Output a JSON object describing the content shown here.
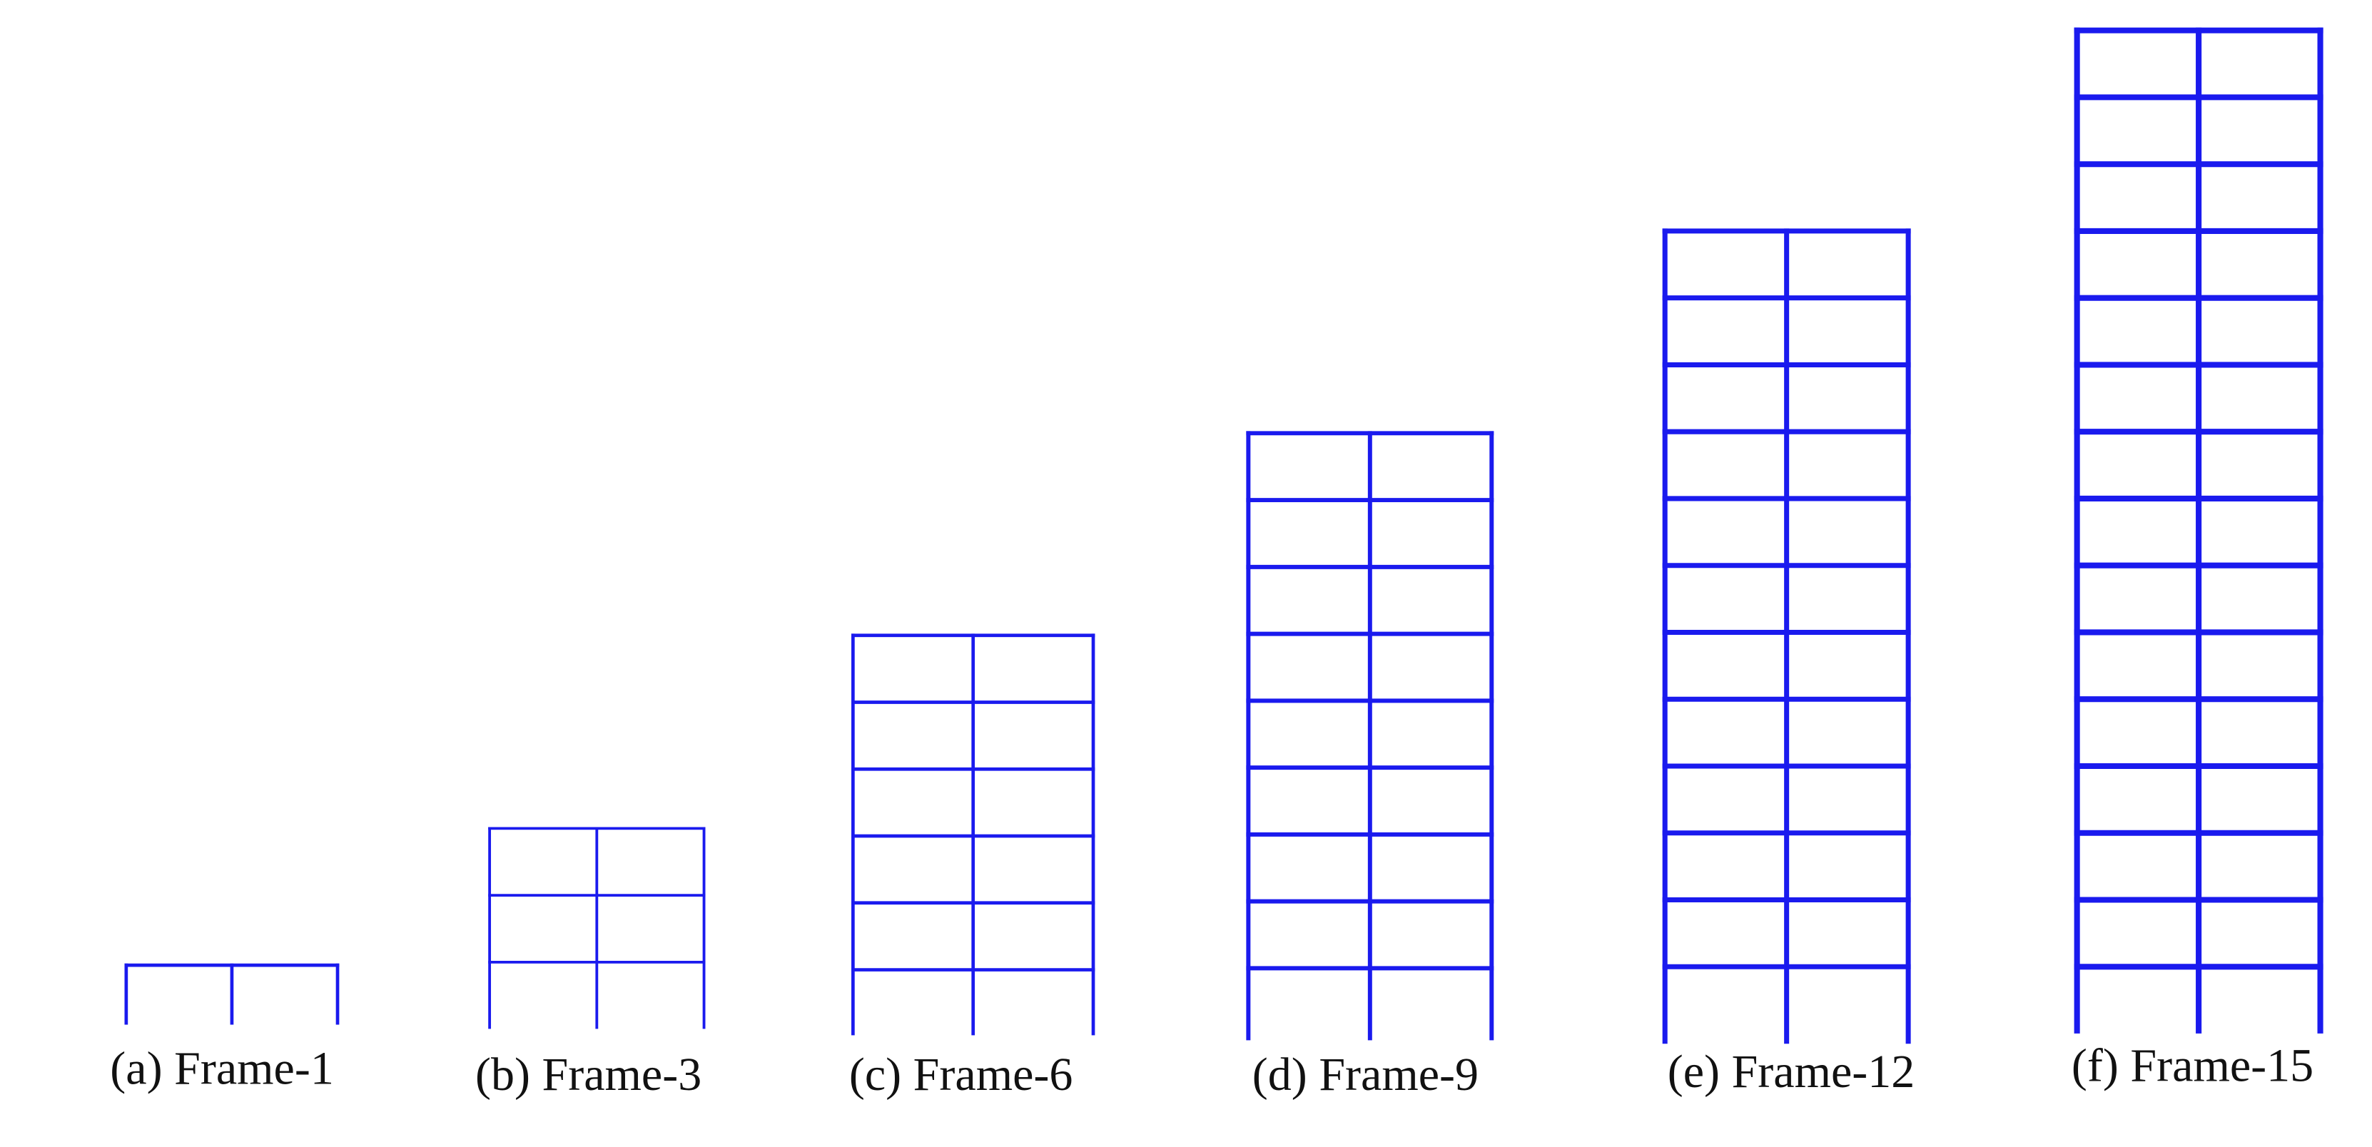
{
  "frames": [
    {
      "label": "(a) Frame-1"
    },
    {
      "label": "(b) Frame-3"
    },
    {
      "label": "(c) Frame-6"
    },
    {
      "label": "(d) Frame-9"
    },
    {
      "label": "(e) Frame-12"
    },
    {
      "label": "(f) Frame-15"
    }
  ]
}
